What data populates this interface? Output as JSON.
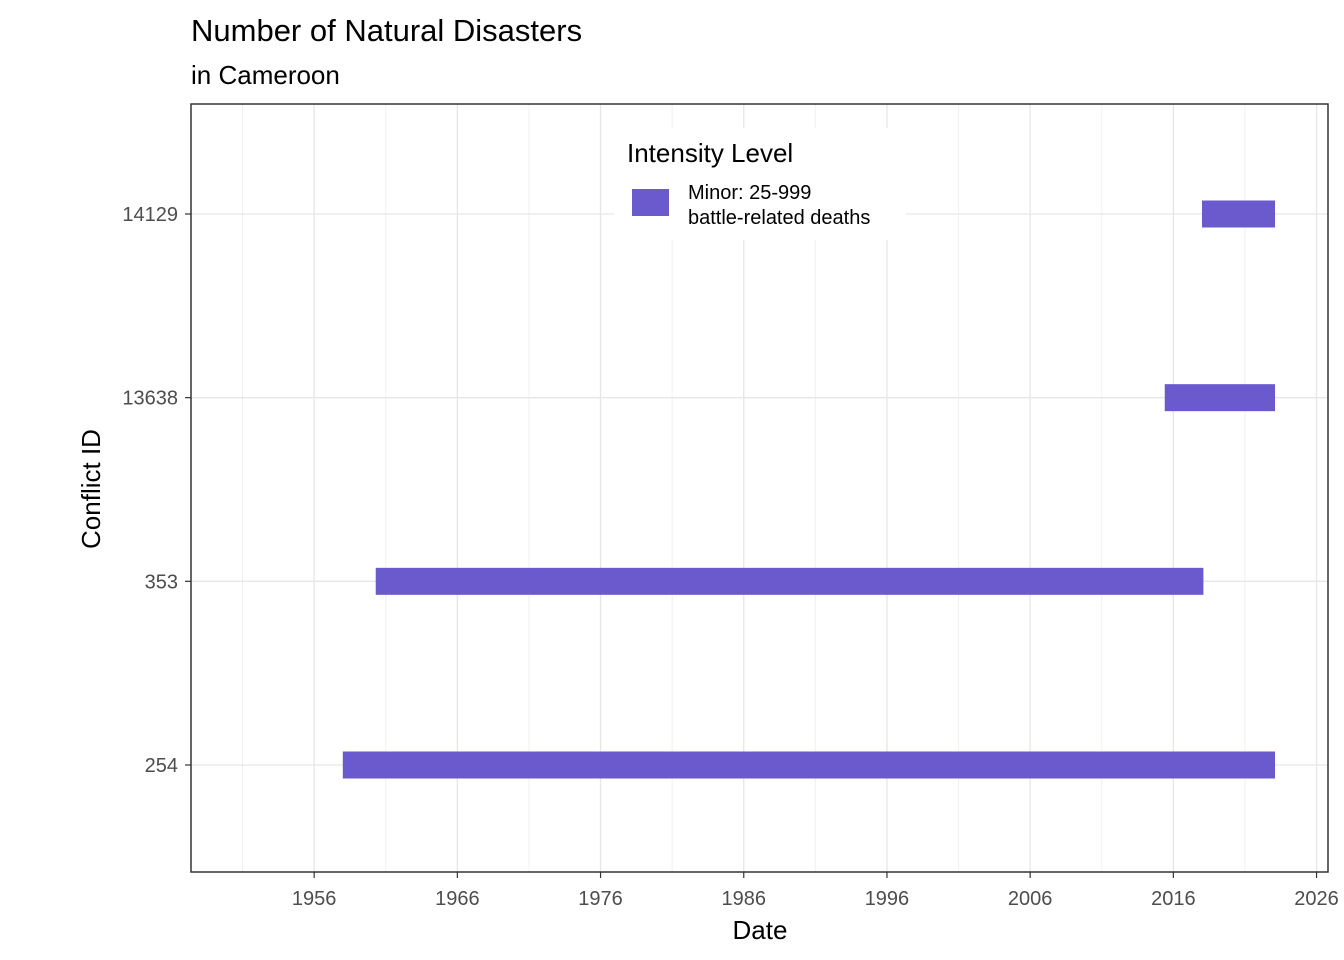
{
  "chart_data": {
    "type": "gantt",
    "title": "Number of Natural Disasters",
    "subtitle": "in Cameroon",
    "xlabel": "Date",
    "ylabel": "Conflict ID",
    "xlim": [
      1947.4,
      2026.8
    ],
    "x_ticks": [
      1956,
      1966,
      1976,
      1986,
      1996,
      2006,
      2016,
      2026
    ],
    "categories": [
      "254",
      "353",
      "13638",
      "14129"
    ],
    "bars": [
      {
        "id": "254",
        "start": 1958.0,
        "end": 2023.1,
        "intensity": "Minor: 25-999 battle-related deaths"
      },
      {
        "id": "353",
        "start": 1960.3,
        "end": 2018.1,
        "intensity": "Minor: 25-999 battle-related deaths"
      },
      {
        "id": "13638",
        "start": 2015.4,
        "end": 2023.1,
        "intensity": "Minor: 25-999 battle-related deaths"
      },
      {
        "id": "14129",
        "start": 2018.0,
        "end": 2023.1,
        "intensity": "Minor: 25-999 battle-related deaths"
      }
    ],
    "legend": {
      "title": "Intensity Level",
      "placement": "top-center",
      "items": [
        {
          "label_line1": "Minor: 25-999",
          "label_line2": "battle-related deaths",
          "color": "#6a5acd"
        }
      ]
    },
    "bar_color": "#6a5acd",
    "grid": true
  }
}
